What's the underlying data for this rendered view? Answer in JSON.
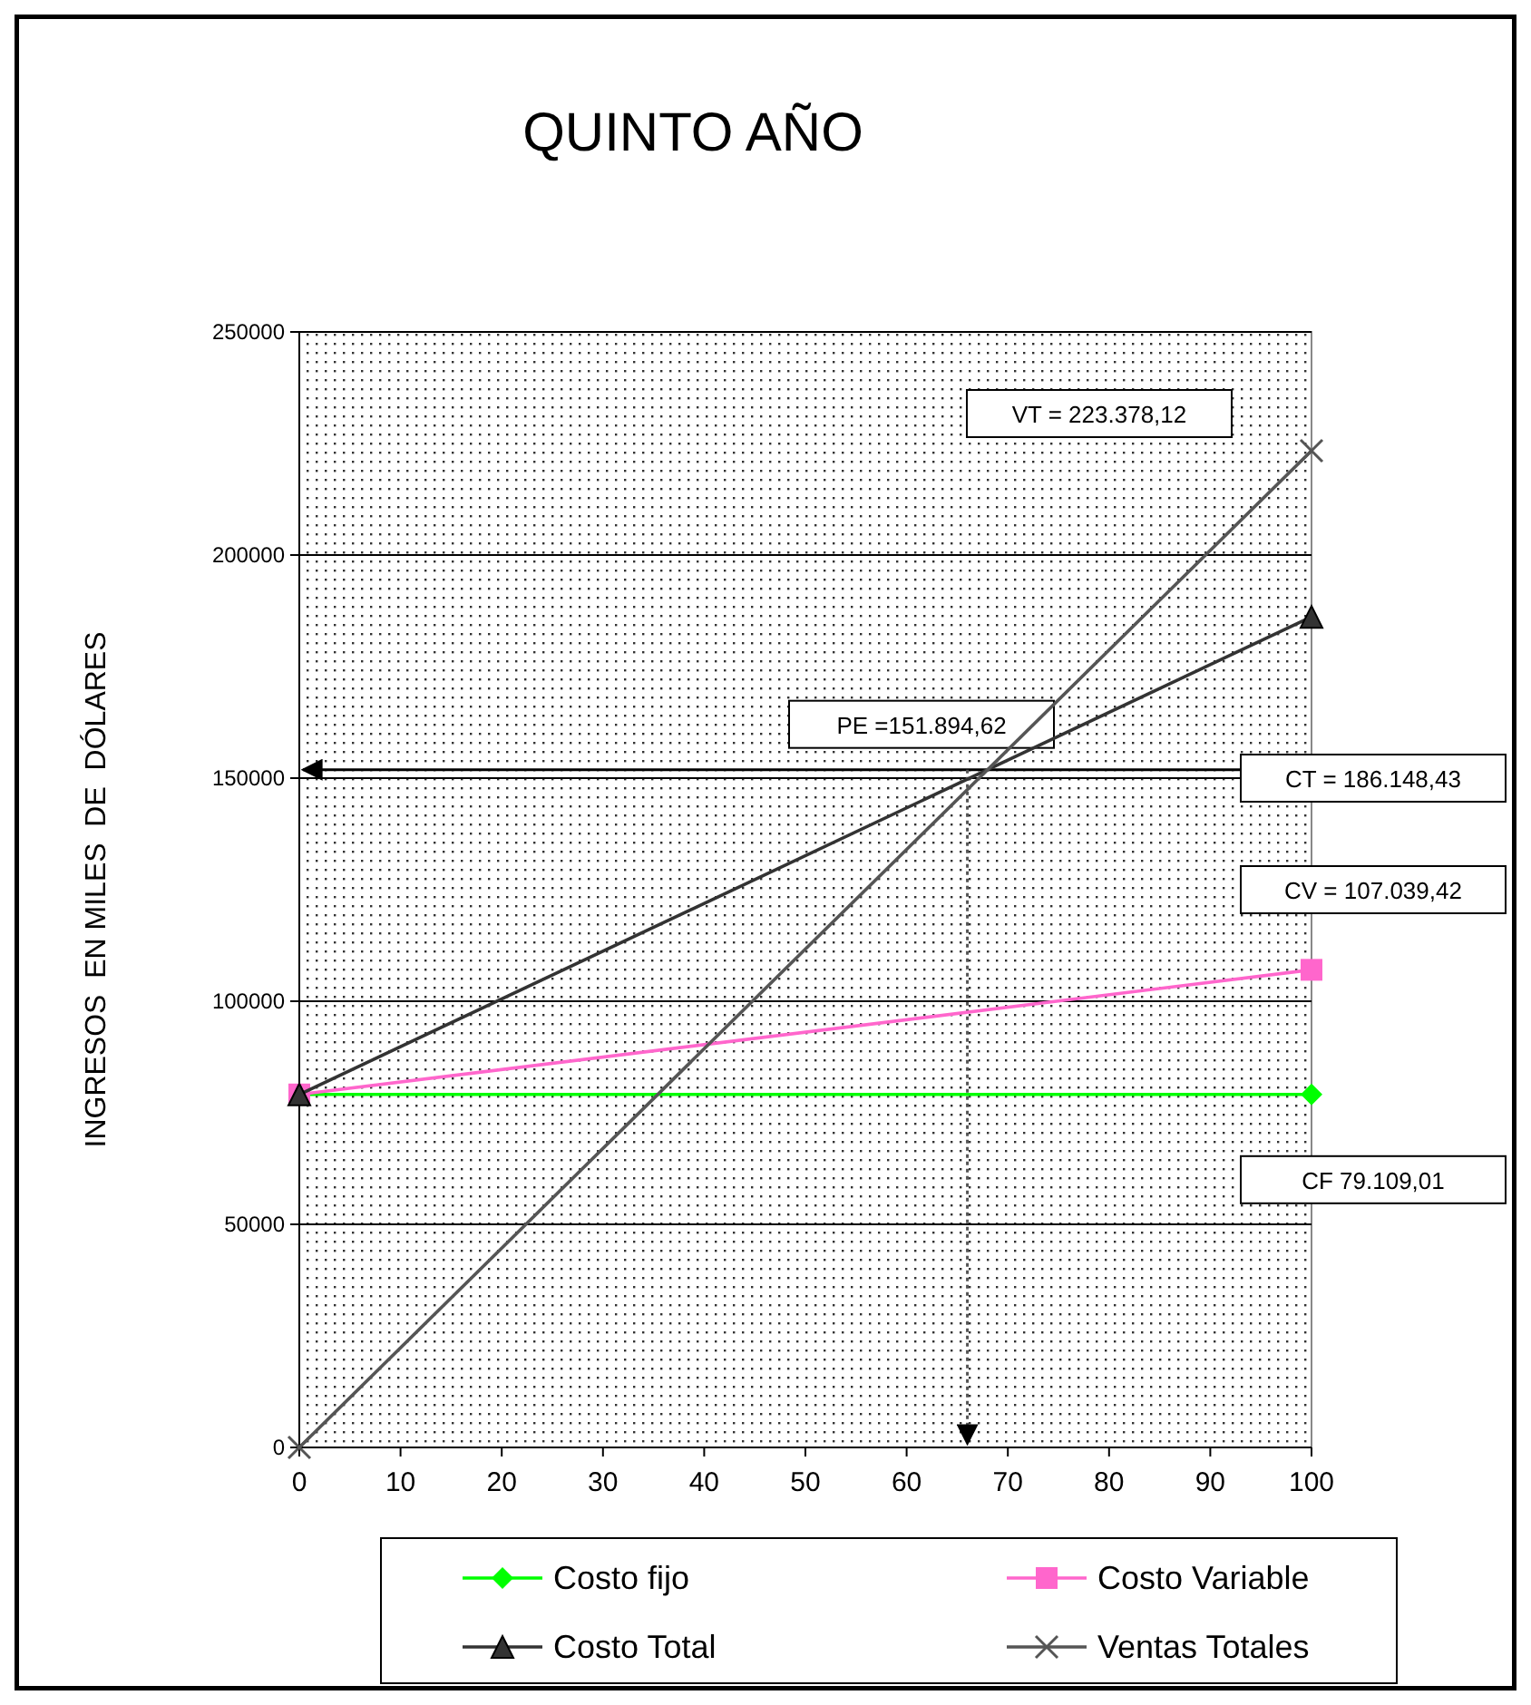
{
  "chart_data": {
    "type": "line",
    "title": "QUINTO AÑO",
    "ylabel": "INGRESOS  EN MILES  DE  DÓLARES",
    "x": [
      0,
      100
    ],
    "xlim": [
      0,
      100
    ],
    "xticks": [
      0,
      10,
      20,
      30,
      40,
      50,
      60,
      70,
      80,
      90,
      100
    ],
    "ylim": [
      0,
      250000
    ],
    "yticks": [
      0,
      50000,
      100000,
      150000,
      200000,
      250000
    ],
    "grid": "y",
    "legend": "bottom",
    "series": [
      {
        "name": "Costo fijo",
        "color": "#00ff00",
        "marker": "diamond",
        "values": [
          79109.01,
          79109.01
        ]
      },
      {
        "name": "Costo Variable",
        "color": "#ff66cc",
        "marker": "square",
        "values": [
          79109.01,
          107039.42
        ]
      },
      {
        "name": "Costo Total",
        "color": "#333333",
        "marker": "triangle",
        "values": [
          79109.01,
          186148.43
        ]
      },
      {
        "name": "Ventas Totales",
        "color": "#555555",
        "marker": "cross",
        "values": [
          0,
          223378.12
        ]
      }
    ],
    "ref_lines": [
      {
        "axis": "y",
        "value": 151894.62,
        "label": "PE =151.894,62",
        "color": "#000000",
        "line_style": "solid"
      },
      {
        "axis": "x",
        "value": 66,
        "color": "#555555",
        "line_style": "dotted"
      }
    ],
    "annotations": [
      "VT = 223.378,12",
      "CT = 186.148,43",
      "CV = 107.039,42",
      "CF 79.109,01"
    ]
  }
}
